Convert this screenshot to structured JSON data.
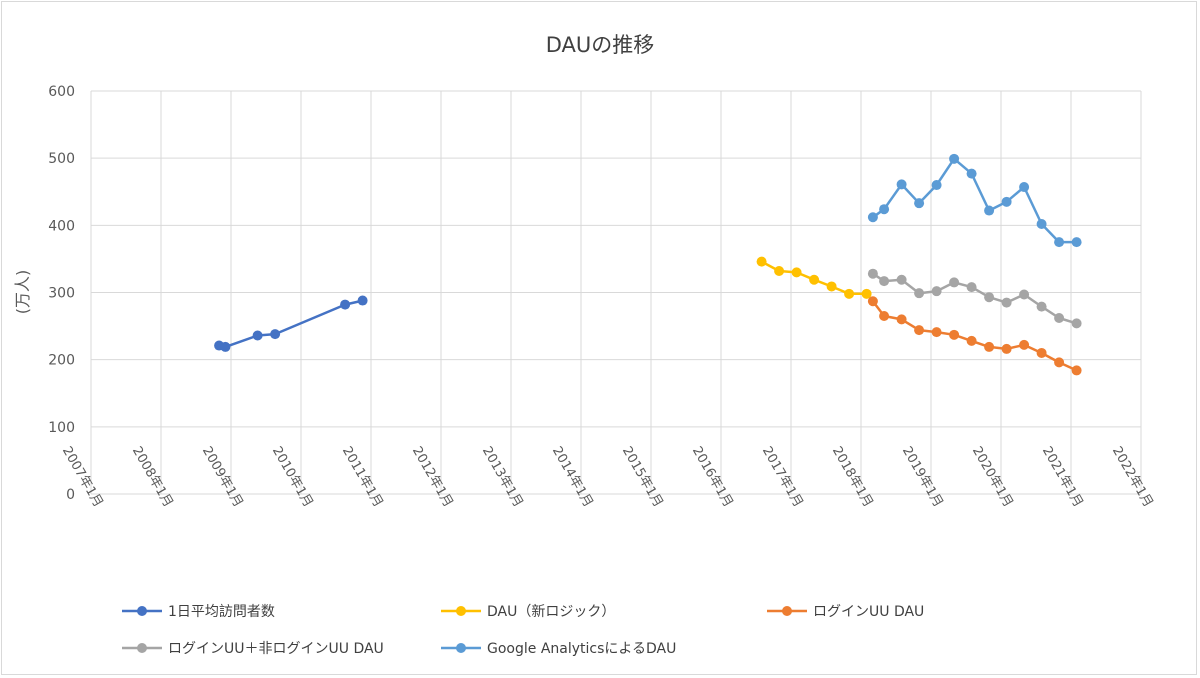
{
  "chart_data": {
    "type": "line",
    "title": "DAUの推移",
    "xlabel": "",
    "ylabel": "(万人)",
    "ylim": [
      0,
      600
    ],
    "yticks": [
      "0",
      "100",
      "200",
      "300",
      "400",
      "500",
      "600"
    ],
    "xlim": [
      2007.0,
      2022.0
    ],
    "xticks": [
      "2007年1月",
      "2008年1月",
      "2009年1月",
      "2010年1月",
      "2011年1月",
      "2012年1月",
      "2013年1月",
      "2014年1月",
      "2015年1月",
      "2016年1月",
      "2017年1月",
      "2018年1月",
      "2019年1月",
      "2020年1月",
      "2021年1月",
      "2022年1月"
    ],
    "grid": true,
    "legend_position": "bottom",
    "series": [
      {
        "name": "1日平均訪問者数",
        "color": "#4472c4",
        "points": [
          {
            "x": 2008.83,
            "y": 221
          },
          {
            "x": 2008.92,
            "y": 219
          },
          {
            "x": 2009.38,
            "y": 236
          },
          {
            "x": 2009.63,
            "y": 238
          },
          {
            "x": 2010.63,
            "y": 282
          },
          {
            "x": 2010.88,
            "y": 288
          }
        ]
      },
      {
        "name": "DAU（新ロジック）",
        "color": "#ffc000",
        "points": [
          {
            "x": 2016.58,
            "y": 346
          },
          {
            "x": 2016.83,
            "y": 332
          },
          {
            "x": 2017.08,
            "y": 330
          },
          {
            "x": 2017.33,
            "y": 319
          },
          {
            "x": 2017.58,
            "y": 309
          },
          {
            "x": 2017.83,
            "y": 298
          },
          {
            "x": 2018.08,
            "y": 298
          }
        ]
      },
      {
        "name": "ログインUU DAU",
        "color": "#ed7d31",
        "points": [
          {
            "x": 2018.17,
            "y": 287
          },
          {
            "x": 2018.33,
            "y": 265
          },
          {
            "x": 2018.58,
            "y": 260
          },
          {
            "x": 2018.83,
            "y": 244
          },
          {
            "x": 2019.08,
            "y": 241
          },
          {
            "x": 2019.33,
            "y": 237
          },
          {
            "x": 2019.58,
            "y": 228
          },
          {
            "x": 2019.83,
            "y": 219
          },
          {
            "x": 2020.08,
            "y": 216
          },
          {
            "x": 2020.33,
            "y": 222
          },
          {
            "x": 2020.58,
            "y": 210
          },
          {
            "x": 2020.83,
            "y": 196
          },
          {
            "x": 2021.08,
            "y": 184
          }
        ]
      },
      {
        "name": "ログインUU＋非ログインUU DAU",
        "color": "#a5a5a5",
        "points": [
          {
            "x": 2018.17,
            "y": 328
          },
          {
            "x": 2018.33,
            "y": 317
          },
          {
            "x": 2018.58,
            "y": 319
          },
          {
            "x": 2018.83,
            "y": 299
          },
          {
            "x": 2019.08,
            "y": 302
          },
          {
            "x": 2019.33,
            "y": 315
          },
          {
            "x": 2019.58,
            "y": 308
          },
          {
            "x": 2019.83,
            "y": 293
          },
          {
            "x": 2020.08,
            "y": 285
          },
          {
            "x": 2020.33,
            "y": 297
          },
          {
            "x": 2020.58,
            "y": 279
          },
          {
            "x": 2020.83,
            "y": 262
          },
          {
            "x": 2021.08,
            "y": 254
          }
        ]
      },
      {
        "name": "Google AnalyticsによるDAU",
        "color": "#5b9bd5",
        "points": [
          {
            "x": 2018.17,
            "y": 412
          },
          {
            "x": 2018.33,
            "y": 424
          },
          {
            "x": 2018.58,
            "y": 461
          },
          {
            "x": 2018.83,
            "y": 433
          },
          {
            "x": 2019.08,
            "y": 460
          },
          {
            "x": 2019.33,
            "y": 499
          },
          {
            "x": 2019.58,
            "y": 477
          },
          {
            "x": 2019.83,
            "y": 422
          },
          {
            "x": 2020.08,
            "y": 435
          },
          {
            "x": 2020.33,
            "y": 457
          },
          {
            "x": 2020.58,
            "y": 402
          },
          {
            "x": 2020.83,
            "y": 375
          },
          {
            "x": 2021.08,
            "y": 375
          }
        ]
      }
    ]
  }
}
